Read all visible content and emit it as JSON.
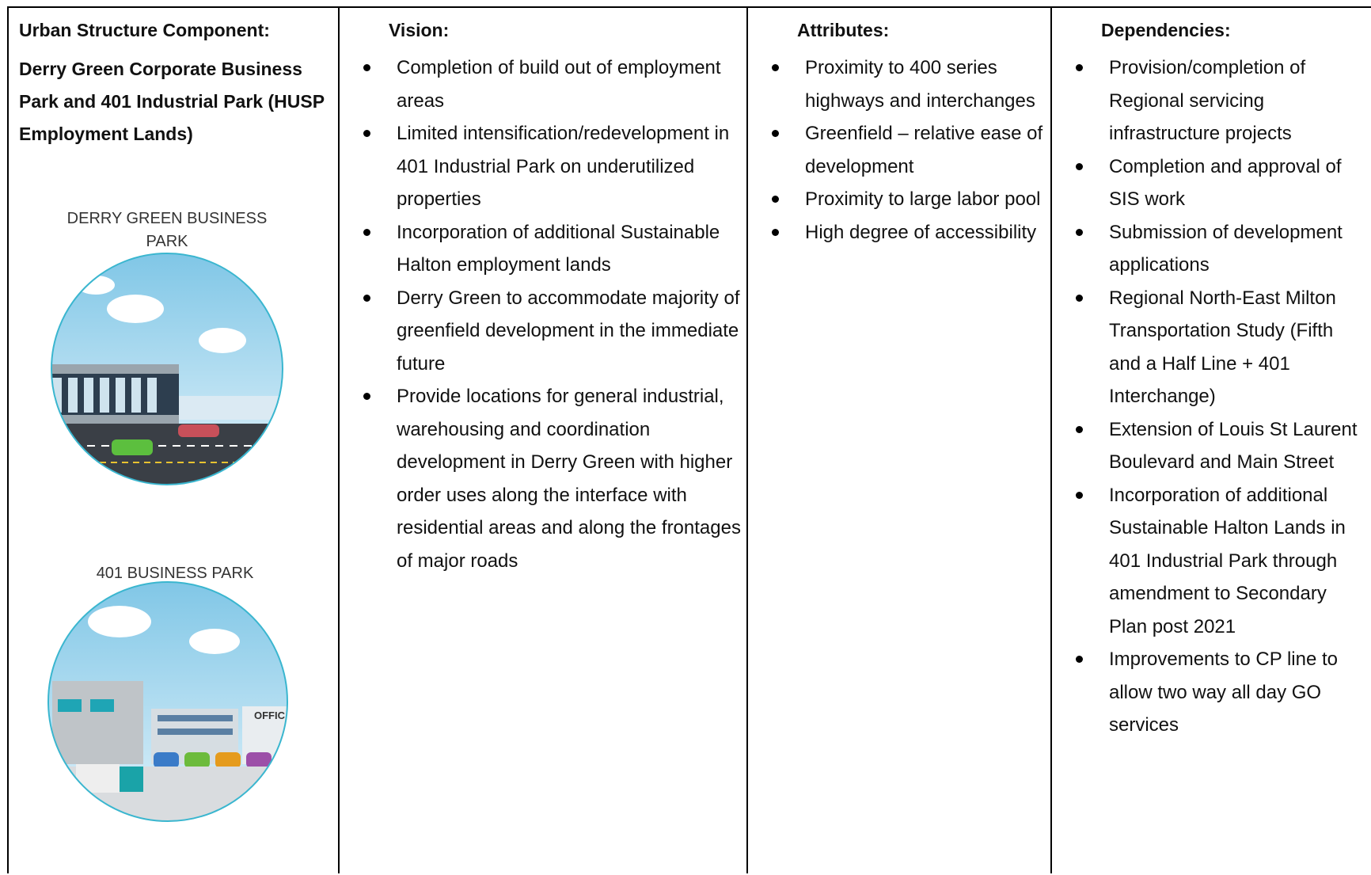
{
  "table": {
    "columns": [
      {
        "header": "Urban Structure Component:",
        "name": "Derry Green Corporate Business Park and 401 Industrial Park (HUSP Employment Lands)",
        "image_labels": [
          "DERRY GREEN BUSINESS PARK",
          "401 BUSINESS PARK"
        ]
      },
      {
        "header": "Vision:",
        "items": [
          "Completion of build out of employment areas",
          "Limited intensification/redevelopment in 401 Industrial Park on underutilized properties",
          "Incorporation of additional Sustainable Halton employment lands",
          "Derry Green to accommodate majority of greenfield development in the immediate future",
          "Provide locations for general industrial, warehousing and coordination development in Derry Green with higher order uses along the interface with residential areas and along the frontages of major roads"
        ]
      },
      {
        "header": "Attributes:",
        "items": [
          "Proximity to 400 series highways and interchanges",
          "Greenfield – relative ease of development",
          "Proximity to large labor pool",
          "High degree of accessibility"
        ]
      },
      {
        "header": "Dependencies:",
        "items": [
          "Provision/completion of Regional servicing infrastructure projects",
          "Completion and approval of SIS work",
          "Submission of development applications",
          "Regional North-East Milton Transportation Study (Fifth and a Half Line + 401 Interchange)",
          "Extension of Louis St Laurent Boulevard and Main Street",
          "Incorporation of additional Sustainable Halton Lands in 401 Industrial Park through amendment to Secondary Plan post 2021",
          "Improvements to CP line to allow two way all day GO services"
        ]
      }
    ]
  }
}
